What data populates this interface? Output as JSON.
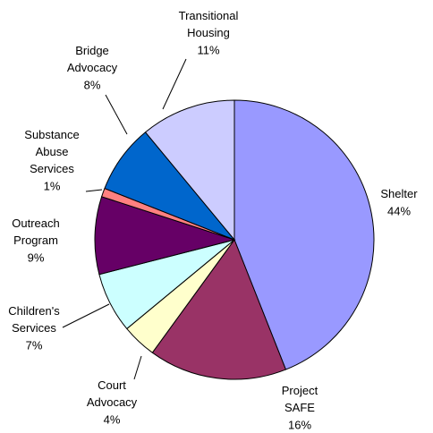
{
  "chart_data": {
    "type": "pie",
    "categories": [
      "Shelter",
      "Project SAFE",
      "Court Advocacy",
      "Children's Services",
      "Outreach Program",
      "Substance Abuse Services",
      "Bridge Advocacy",
      "Transitional Housing"
    ],
    "values": [
      44,
      16,
      4,
      7,
      9,
      1,
      8,
      11
    ],
    "value_labels": [
      "44%",
      "16%",
      "4%",
      "7%",
      "9%",
      "1%",
      "8%",
      "11%"
    ],
    "colors": [
      "#9999ff",
      "#993366",
      "#ffffcc",
      "#ccffff",
      "#660066",
      "#ff8080",
      "#0066cc",
      "#ccccff"
    ]
  }
}
